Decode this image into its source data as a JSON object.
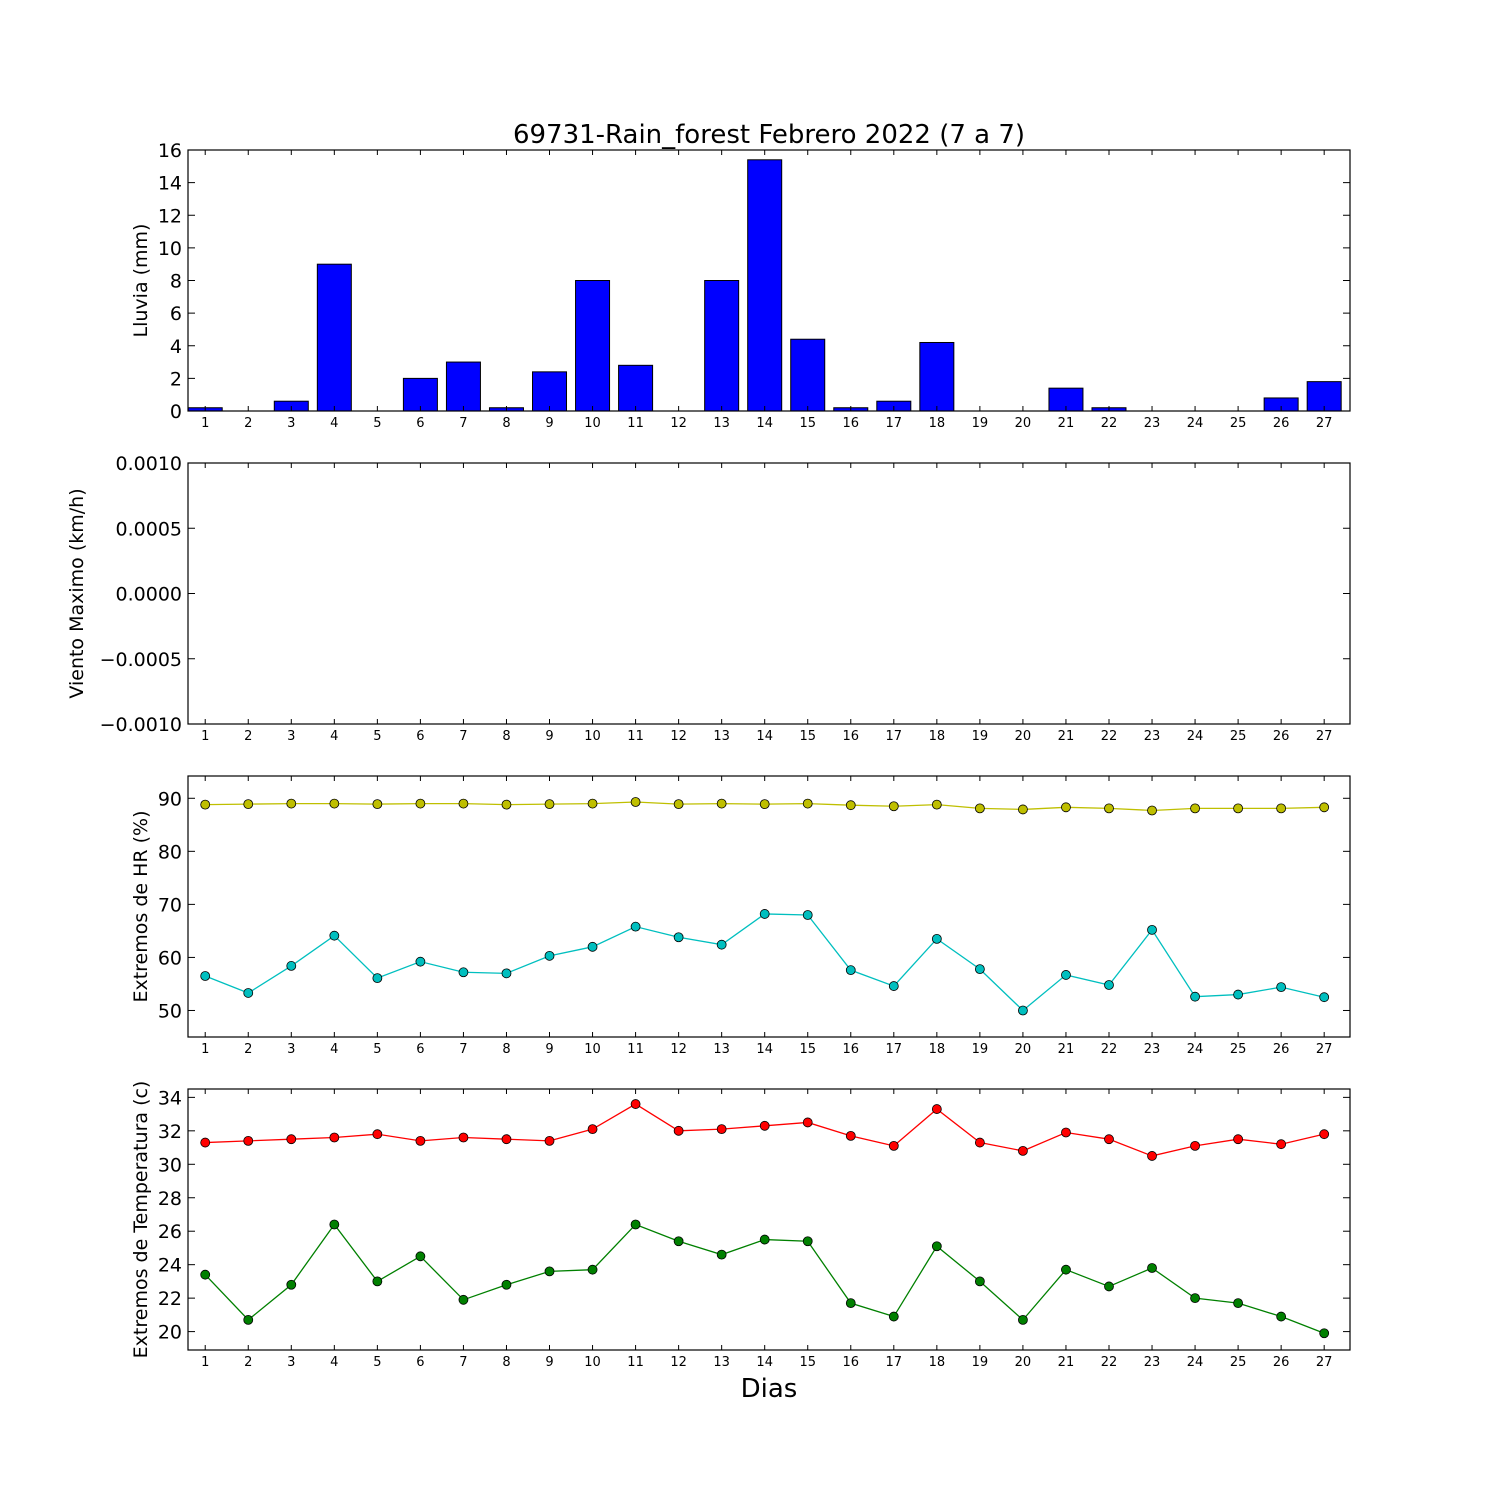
{
  "figure": {
    "title": "69731-Rain_forest Febrero 2022  (7 a 7)",
    "xlabel": "Dias"
  },
  "chart_data": [
    {
      "type": "bar",
      "ylabel": "Lluvia (mm)",
      "ylim": [
        0,
        16
      ],
      "yticks": [
        0,
        2,
        4,
        6,
        8,
        10,
        12,
        14,
        16
      ],
      "ytick_labels": [
        "0",
        "2",
        "4",
        "6",
        "8",
        "10",
        "12",
        "14",
        "16"
      ],
      "xlim": [
        0.6,
        27.6
      ],
      "categories": [
        "1",
        "2",
        "3",
        "4",
        "5",
        "6",
        "7",
        "8",
        "9",
        "10",
        "11",
        "12",
        "13",
        "14",
        "15",
        "16",
        "17",
        "18",
        "19",
        "20",
        "21",
        "22",
        "23",
        "24",
        "25",
        "26",
        "27"
      ],
      "series": [
        {
          "values": [
            0.2,
            0,
            0.6,
            9.0,
            0,
            2.0,
            3.0,
            0.2,
            2.4,
            8.0,
            2.8,
            0,
            8.0,
            15.4,
            4.4,
            0.2,
            0.6,
            4.2,
            0,
            0,
            1.4,
            0.2,
            0,
            0,
            0,
            0.8,
            1.8
          ],
          "color": "#0000ff"
        }
      ],
      "grid": false
    },
    {
      "type": "line",
      "ylabel": "Viento Maximo (km/h)",
      "ylim": [
        -0.001,
        0.001
      ],
      "yticks": [
        -0.001,
        -0.0005,
        0,
        0.0005,
        0.001
      ],
      "ytick_labels": [
        "−0.0010",
        "−0.0005",
        "0.0000",
        "0.0005",
        "0.0010"
      ],
      "xlim": [
        0.6,
        27.6
      ],
      "categories": [
        "1",
        "2",
        "3",
        "4",
        "5",
        "6",
        "7",
        "8",
        "9",
        "10",
        "11",
        "12",
        "13",
        "14",
        "15",
        "16",
        "17",
        "18",
        "19",
        "20",
        "21",
        "22",
        "23",
        "24",
        "25",
        "26",
        "27"
      ],
      "series": [],
      "grid": false
    },
    {
      "type": "line",
      "ylabel": "Extremos de HR (%)",
      "ylim": [
        45,
        94.2
      ],
      "yticks": [
        50,
        60,
        70,
        80,
        90
      ],
      "ytick_labels": [
        "50",
        "60",
        "70",
        "80",
        "90"
      ],
      "xlim": [
        0.6,
        27.6
      ],
      "categories": [
        "1",
        "2",
        "3",
        "4",
        "5",
        "6",
        "7",
        "8",
        "9",
        "10",
        "11",
        "12",
        "13",
        "14",
        "15",
        "16",
        "17",
        "18",
        "19",
        "20",
        "21",
        "22",
        "23",
        "24",
        "25",
        "26",
        "27"
      ],
      "series": [
        {
          "values": [
            88.8,
            88.9,
            89.0,
            89.0,
            88.9,
            89.0,
            89.0,
            88.8,
            88.9,
            89.0,
            89.3,
            88.9,
            89.0,
            88.9,
            89.0,
            88.7,
            88.5,
            88.8,
            88.1,
            87.9,
            88.3,
            88.1,
            87.7,
            88.1,
            88.1,
            88.1,
            88.3
          ],
          "color": "#bfbf00"
        },
        {
          "values": [
            56.5,
            53.3,
            58.4,
            64.1,
            56.1,
            59.2,
            57.2,
            57.0,
            60.3,
            62.0,
            65.8,
            63.8,
            62.4,
            68.2,
            68.0,
            57.6,
            54.6,
            63.5,
            57.8,
            50.0,
            56.7,
            54.8,
            65.2,
            52.6,
            53.0,
            54.4,
            52.5
          ],
          "color": "#00bfbf"
        }
      ],
      "grid": false
    },
    {
      "type": "line",
      "ylabel": "Extremos de Temperatura (c)",
      "ylim": [
        18.9,
        34.5
      ],
      "yticks": [
        20,
        22,
        24,
        26,
        28,
        30,
        32,
        34
      ],
      "ytick_labels": [
        "20",
        "22",
        "24",
        "26",
        "28",
        "30",
        "32",
        "34"
      ],
      "xlim": [
        0.6,
        27.6
      ],
      "categories": [
        "1",
        "2",
        "3",
        "4",
        "5",
        "6",
        "7",
        "8",
        "9",
        "10",
        "11",
        "12",
        "13",
        "14",
        "15",
        "16",
        "17",
        "18",
        "19",
        "20",
        "21",
        "22",
        "23",
        "24",
        "25",
        "26",
        "27"
      ],
      "series": [
        {
          "values": [
            31.3,
            31.4,
            31.5,
            31.6,
            31.8,
            31.4,
            31.6,
            31.5,
            31.4,
            32.1,
            33.6,
            32.0,
            32.1,
            32.3,
            32.5,
            31.7,
            31.1,
            33.3,
            31.3,
            30.8,
            31.9,
            31.5,
            30.5,
            31.1,
            31.5,
            31.2,
            31.8
          ],
          "color": "#ff0000"
        },
        {
          "values": [
            23.4,
            20.7,
            22.8,
            26.4,
            23.0,
            24.5,
            21.9,
            22.8,
            23.6,
            23.7,
            26.4,
            25.4,
            24.6,
            25.5,
            25.4,
            21.7,
            20.9,
            25.1,
            23.0,
            20.7,
            23.7,
            22.7,
            23.8,
            22.0,
            21.7,
            20.9,
            19.9
          ],
          "color": "#008000"
        }
      ],
      "grid": false
    }
  ]
}
